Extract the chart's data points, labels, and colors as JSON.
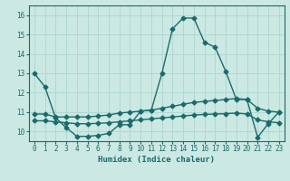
{
  "title": "",
  "xlabel": "Humidex (Indice chaleur)",
  "ylabel": "",
  "background_color": "#cbe8e3",
  "grid_color": "#b0d8d2",
  "line_color": "#1a6b6b",
  "xlim": [
    -0.5,
    23.5
  ],
  "ylim": [
    9.5,
    16.5
  ],
  "xticks": [
    0,
    1,
    2,
    3,
    4,
    5,
    6,
    7,
    8,
    9,
    10,
    11,
    12,
    13,
    14,
    15,
    16,
    17,
    18,
    19,
    20,
    21,
    22,
    23
  ],
  "yticks": [
    10,
    11,
    12,
    13,
    14,
    15,
    16
  ],
  "series": [
    {
      "x": [
        0,
        1,
        2,
        3,
        4,
        5,
        6,
        7,
        8,
        9,
        10,
        11,
        12,
        13,
        14,
        15,
        16,
        17,
        18,
        19,
        20,
        21,
        22,
        23
      ],
      "y": [
        13.0,
        12.3,
        10.7,
        10.2,
        9.75,
        9.75,
        9.8,
        9.9,
        10.35,
        10.35,
        11.05,
        11.1,
        13.0,
        15.3,
        15.85,
        15.85,
        14.6,
        14.35,
        13.1,
        11.65,
        11.65,
        9.7,
        10.4,
        11.0
      ],
      "marker": "D",
      "markersize": 2.5,
      "linewidth": 1.0
    },
    {
      "x": [
        0,
        1,
        2,
        3,
        4,
        5,
        6,
        7,
        8,
        9,
        10,
        11,
        12,
        13,
        14,
        15,
        16,
        17,
        18,
        19,
        20,
        21,
        22,
        23
      ],
      "y": [
        10.9,
        10.9,
        10.75,
        10.75,
        10.75,
        10.75,
        10.8,
        10.85,
        10.95,
        11.0,
        11.05,
        11.1,
        11.2,
        11.3,
        11.4,
        11.5,
        11.55,
        11.6,
        11.65,
        11.7,
        11.65,
        11.2,
        11.05,
        11.0
      ],
      "marker": "D",
      "markersize": 2.5,
      "linewidth": 1.0
    },
    {
      "x": [
        0,
        1,
        2,
        3,
        4,
        5,
        6,
        7,
        8,
        9,
        10,
        11,
        12,
        13,
        14,
        15,
        16,
        17,
        18,
        19,
        20,
        21,
        22,
        23
      ],
      "y": [
        10.55,
        10.55,
        10.5,
        10.45,
        10.4,
        10.4,
        10.42,
        10.45,
        10.5,
        10.55,
        10.6,
        10.65,
        10.7,
        10.75,
        10.8,
        10.85,
        10.88,
        10.9,
        10.92,
        10.95,
        10.9,
        10.6,
        10.5,
        10.45
      ],
      "marker": "D",
      "markersize": 2.5,
      "linewidth": 1.0
    }
  ]
}
